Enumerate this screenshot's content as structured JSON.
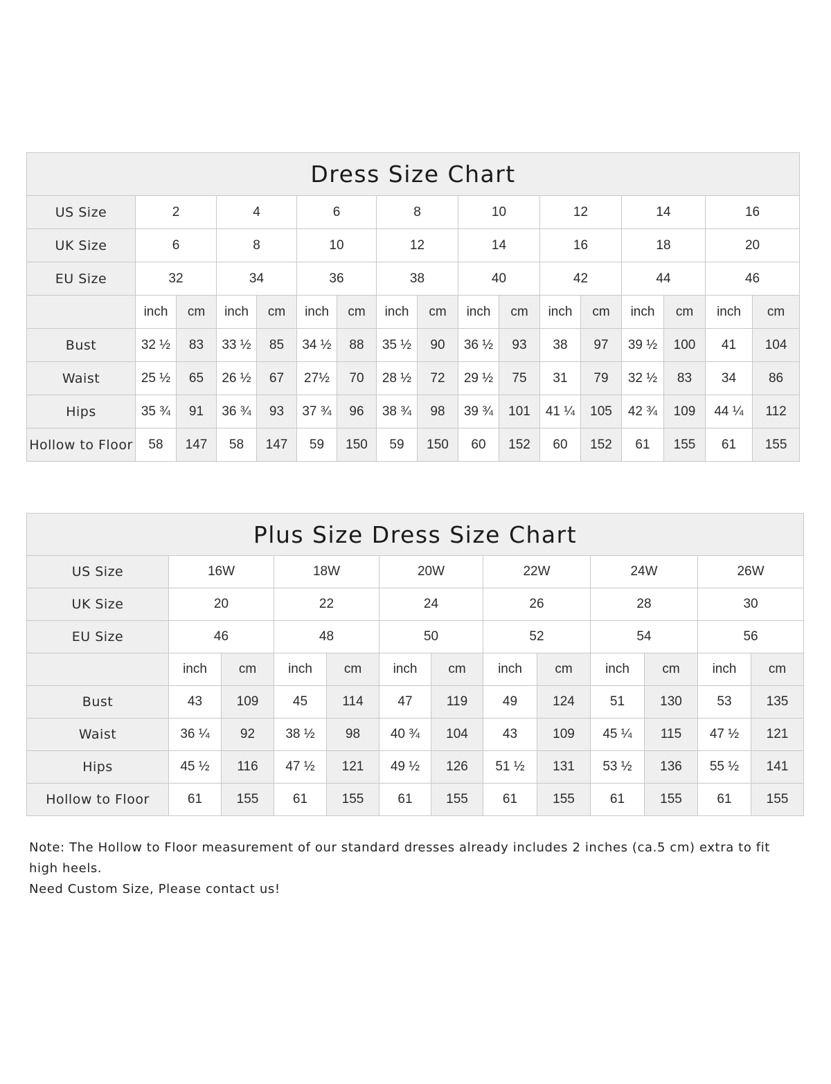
{
  "charts": [
    {
      "title": "Dress Size Chart",
      "size_rows": [
        {
          "label": "US Size",
          "values": [
            "2",
            "4",
            "6",
            "8",
            "10",
            "12",
            "14",
            "16"
          ]
        },
        {
          "label": "UK Size",
          "values": [
            "6",
            "8",
            "10",
            "12",
            "14",
            "16",
            "18",
            "20"
          ]
        },
        {
          "label": "EU Size",
          "values": [
            "32",
            "34",
            "36",
            "38",
            "40",
            "42",
            "44",
            "46"
          ]
        }
      ],
      "unit_labels": {
        "inch": "inch",
        "cm": "cm"
      },
      "measure_rows": [
        {
          "label": "Bust",
          "values": [
            [
              "32 ½",
              "83"
            ],
            [
              "33 ½",
              "85"
            ],
            [
              "34 ½",
              "88"
            ],
            [
              "35 ½",
              "90"
            ],
            [
              "36 ½",
              "93"
            ],
            [
              "38",
              "97"
            ],
            [
              "39 ½",
              "100"
            ],
            [
              "41",
              "104"
            ]
          ]
        },
        {
          "label": "Waist",
          "values": [
            [
              "25 ½",
              "65"
            ],
            [
              "26 ½",
              "67"
            ],
            [
              "27½",
              "70"
            ],
            [
              "28 ½",
              "72"
            ],
            [
              "29 ½",
              "75"
            ],
            [
              "31",
              "79"
            ],
            [
              "32 ½",
              "83"
            ],
            [
              "34",
              "86"
            ]
          ]
        },
        {
          "label": "Hips",
          "values": [
            [
              "35 ¾",
              "91"
            ],
            [
              "36 ¾",
              "93"
            ],
            [
              "37 ¾",
              "96"
            ],
            [
              "38 ¾",
              "98"
            ],
            [
              "39 ¾",
              "101"
            ],
            [
              "41 ¼",
              "105"
            ],
            [
              "42 ¾",
              "109"
            ],
            [
              "44 ¼",
              "112"
            ]
          ]
        },
        {
          "label": "Hollow to Floor",
          "values": [
            [
              "58",
              "147"
            ],
            [
              "58",
              "147"
            ],
            [
              "59",
              "150"
            ],
            [
              "59",
              "150"
            ],
            [
              "60",
              "152"
            ],
            [
              "60",
              "152"
            ],
            [
              "61",
              "155"
            ],
            [
              "61",
              "155"
            ]
          ]
        }
      ]
    },
    {
      "title": "Plus Size Dress Size Chart",
      "size_rows": [
        {
          "label": "US Size",
          "values": [
            "16W",
            "18W",
            "20W",
            "22W",
            "24W",
            "26W"
          ]
        },
        {
          "label": "UK Size",
          "values": [
            "20",
            "22",
            "24",
            "26",
            "28",
            "30"
          ]
        },
        {
          "label": "EU Size",
          "values": [
            "46",
            "48",
            "50",
            "52",
            "54",
            "56"
          ]
        }
      ],
      "unit_labels": {
        "inch": "inch",
        "cm": "cm"
      },
      "measure_rows": [
        {
          "label": "Bust",
          "values": [
            [
              "43",
              "109"
            ],
            [
              "45",
              "114"
            ],
            [
              "47",
              "119"
            ],
            [
              "49",
              "124"
            ],
            [
              "51",
              "130"
            ],
            [
              "53",
              "135"
            ]
          ]
        },
        {
          "label": "Waist",
          "values": [
            [
              "36 ¼",
              "92"
            ],
            [
              "38 ½",
              "98"
            ],
            [
              "40 ¾",
              "104"
            ],
            [
              "43",
              "109"
            ],
            [
              "45 ¼",
              "115"
            ],
            [
              "47 ½",
              "121"
            ]
          ]
        },
        {
          "label": "Hips",
          "values": [
            [
              "45 ½",
              "116"
            ],
            [
              "47 ½",
              "121"
            ],
            [
              "49 ½",
              "126"
            ],
            [
              "51 ½",
              "131"
            ],
            [
              "53 ½",
              "136"
            ],
            [
              "55 ½",
              "141"
            ]
          ]
        },
        {
          "label": "Hollow to Floor",
          "values": [
            [
              "61",
              "155"
            ],
            [
              "61",
              "155"
            ],
            [
              "61",
              "155"
            ],
            [
              "61",
              "155"
            ],
            [
              "61",
              "155"
            ],
            [
              "61",
              "155"
            ]
          ]
        }
      ]
    }
  ],
  "note": {
    "line1": "Note: The Hollow to Floor measurement of our standard dresses already includes 2 inches (ca.5 cm) extra to fit high heels.",
    "line2": "Need Custom Size, Please contact us!"
  },
  "colors": {
    "header_bg": "#efefef",
    "border": "#c8c8c8"
  }
}
